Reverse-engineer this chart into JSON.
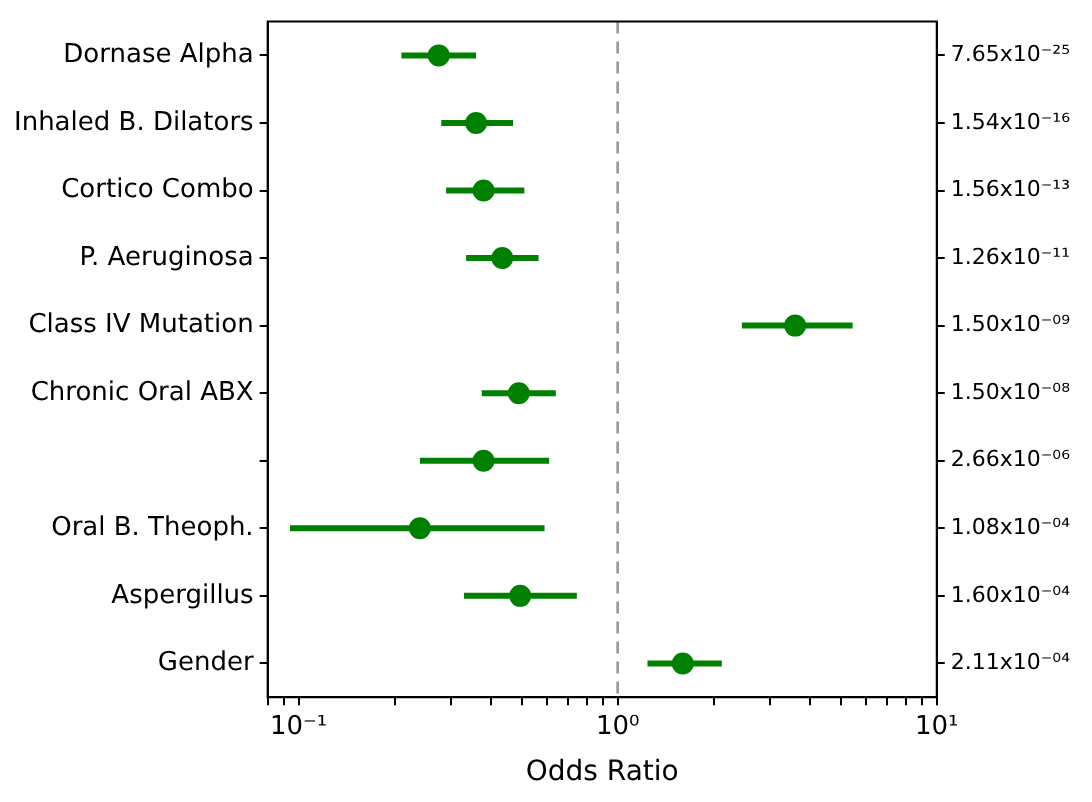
{
  "chart_data": {
    "type": "scatter",
    "orientation": "horizontal",
    "xlabel": "Odds Ratio",
    "categories": [
      "Dornase Alpha",
      "Inhaled B. Dilators",
      "Cortico Combo",
      "P. Aeruginosa",
      "Class IV Mutation",
      "Chronic Oral ABX",
      null,
      "Oral B. Theoph.",
      "Aspergillus",
      "Gender"
    ],
    "y2_categories": [
      "7.65x10⁻²⁵",
      "1.54x10⁻¹⁶",
      "1.56x10⁻¹³",
      "1.26x10⁻¹¹",
      "1.50x10⁻⁰⁹",
      "1.50x10⁻⁰⁸",
      "2.66x10⁻⁰⁶",
      "1.08x10⁻⁰⁴",
      "1.60x10⁻⁰⁴",
      "2.11x10⁻⁰⁴"
    ],
    "series": [
      {
        "color": "#008000",
        "values": [
          0.275,
          0.36,
          0.38,
          0.435,
          3.6,
          0.49,
          0.38,
          0.24,
          0.495,
          1.6
        ],
        "errors": [
          [
            0.21,
            0.36
          ],
          [
            0.28,
            0.47
          ],
          [
            0.29,
            0.51
          ],
          [
            0.335,
            0.565
          ],
          [
            2.45,
            5.45
          ],
          [
            0.375,
            0.64
          ],
          [
            0.24,
            0.61
          ],
          [
            0.094,
            0.59
          ],
          [
            0.33,
            0.745
          ],
          [
            1.24,
            2.12
          ]
        ]
      }
    ],
    "log": "x",
    "xlim": [
      0.08,
      10
    ],
    "xticks": [
      {
        "value": 0.08,
        "label": null
      },
      {
        "value": 0.09,
        "label": null
      },
      {
        "value": 0.1,
        "label": "10⁻¹"
      },
      {
        "value": 0.2,
        "label": null
      },
      {
        "value": 0.3,
        "label": null
      },
      {
        "value": 0.4,
        "label": null
      },
      {
        "value": 0.5,
        "label": null
      },
      {
        "value": 0.6,
        "label": null
      },
      {
        "value": 0.7,
        "label": null
      },
      {
        "value": 0.8,
        "label": null
      },
      {
        "value": 0.9,
        "label": null
      },
      {
        "value": 1,
        "label": "10⁰"
      },
      {
        "value": 2,
        "label": null
      },
      {
        "value": 3,
        "label": null
      },
      {
        "value": 4,
        "label": null
      },
      {
        "value": 5,
        "label": null
      },
      {
        "value": 6,
        "label": null
      },
      {
        "value": 7,
        "label": null
      },
      {
        "value": 8,
        "label": null
      },
      {
        "value": 9,
        "label": null
      },
      {
        "value": 10,
        "label": "10¹"
      }
    ],
    "ref_lines": [
      {
        "axis": "x",
        "value": 1,
        "color": "#999999",
        "line_style": "dashed"
      }
    ],
    "marker": "circle",
    "grid": false,
    "legend": false
  }
}
